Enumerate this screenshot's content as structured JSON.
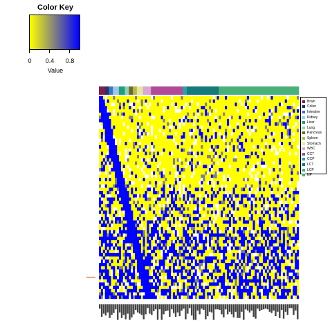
{
  "color_key": {
    "title": "Color Key",
    "xlabel": "Value",
    "ticks": [
      "0",
      "0.4",
      "0.8"
    ],
    "low_color": "#ffff00",
    "mid_color": "#808080",
    "high_color": "#0000ff"
  },
  "legend": {
    "items": [
      {
        "label": "Brain",
        "color": "#7f1f4a"
      },
      {
        "label": "Colon",
        "color": "#2f2f66"
      },
      {
        "label": "Intestine",
        "color": "#3a78c2"
      },
      {
        "label": "Kidney",
        "color": "#9ac7e8"
      },
      {
        "label": "Liver",
        "color": "#1f9e7a"
      },
      {
        "label": "Lung",
        "color": "#8fd1b8"
      },
      {
        "label": "Pancreas",
        "color": "#6b6b2a"
      },
      {
        "label": "Spleen",
        "color": "#b8b84a"
      },
      {
        "label": "Stomach",
        "color": "#e6e6a0"
      },
      {
        "label": "WBC",
        "color": "#d8a8d0"
      },
      {
        "label": "CCT",
        "color": "#b24a9a"
      },
      {
        "label": "CCP",
        "color": "#2aa0a8"
      },
      {
        "label": "LCT",
        "color": "#157a7a"
      },
      {
        "label": "LCP",
        "color": "#4ab07a"
      },
      {
        "label": "NP",
        "color": "#4ab07a"
      }
    ]
  },
  "chart_data": {
    "type": "heatmap",
    "title": "",
    "xlabel": "",
    "ylabel": "",
    "value_range": [
      0,
      1
    ],
    "color_scale": [
      "#ffff00",
      "#808080",
      "#0000ff"
    ],
    "column_groups": [
      {
        "name": "Brain",
        "count": 3,
        "color": "#7f1f4a"
      },
      {
        "name": "Colon",
        "count": 2,
        "color": "#2f2f66"
      },
      {
        "name": "Intestine",
        "count": 2,
        "color": "#3a78c2"
      },
      {
        "name": "Kidney",
        "count": 3,
        "color": "#9ac7e8"
      },
      {
        "name": "Liver",
        "count": 3,
        "color": "#1f9e7a"
      },
      {
        "name": "Lung",
        "count": 2,
        "color": "#8fd1b8"
      },
      {
        "name": "Pancreas",
        "count": 2,
        "color": "#6b6b2a"
      },
      {
        "name": "Spleen",
        "count": 2,
        "color": "#b8b84a"
      },
      {
        "name": "Stomach",
        "count": 3,
        "color": "#e6e6a0"
      },
      {
        "name": "WBC",
        "count": 4,
        "color": "#d8a8d0"
      },
      {
        "name": "CCT",
        "count": 16,
        "color": "#b24a9a"
      },
      {
        "name": "CCP",
        "count": 2,
        "color": "#2aa0a8"
      },
      {
        "name": "LCT",
        "count": 16,
        "color": "#157a7a"
      },
      {
        "name": "LCP",
        "count": 40,
        "color": "#4ab07a"
      }
    ],
    "row_count": 62,
    "row_marker_color": "#cc5500",
    "grid": false
  }
}
